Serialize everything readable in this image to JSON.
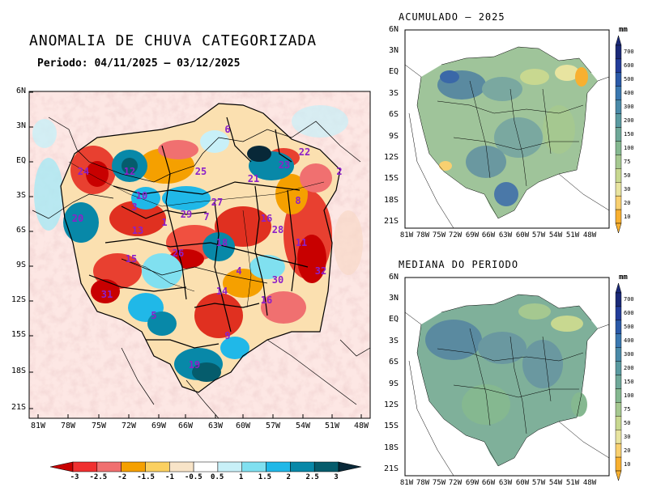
{
  "main": {
    "title": "ANOMALIA DE CHUVA CATEGORIZADA",
    "subtitle": "Periodo: 04/11/2025 – 03/12/2025",
    "lat_labels": [
      "6N",
      "3N",
      "EQ",
      "3S",
      "6S",
      "9S",
      "12S",
      "15S",
      "18S",
      "21S"
    ],
    "lon_labels": [
      "81W",
      "78W",
      "75W",
      "72W",
      "69W",
      "66W",
      "63W",
      "60W",
      "57W",
      "54W",
      "51W",
      "48W"
    ],
    "basin_ids": [
      "6",
      "22",
      "24",
      "12",
      "25",
      "21",
      "23",
      "2",
      "10",
      "3",
      "1",
      "29",
      "7",
      "27",
      "13",
      "8",
      "20",
      "18",
      "11",
      "28",
      "16",
      "26",
      "15",
      "4",
      "32",
      "30",
      "31",
      "14",
      "16",
      "5",
      "9",
      "19"
    ],
    "colorbar": {
      "labels": [
        "-3",
        "-2.5",
        "-2",
        "-1.5",
        "-1",
        "-0.5",
        "0.5",
        "1",
        "1.5",
        "2",
        "2.5",
        "3"
      ],
      "colors": [
        "#c80000",
        "#f03030",
        "#f07070",
        "#f5a000",
        "#fbd060",
        "#f8e4c8",
        "#ffffff",
        "#c8f0f8",
        "#80e0f0",
        "#20b8e8",
        "#0888a8",
        "#055c6c",
        "#082838"
      ]
    }
  },
  "accumulated": {
    "title": "ACUMULADO – 2025",
    "unit": "mm"
  },
  "median": {
    "title": "MEDIANA DO PERIODO",
    "unit": "mm"
  },
  "small_maps": {
    "lat_labels": [
      "6N",
      "3N",
      "EQ",
      "3S",
      "6S",
      "9S",
      "12S",
      "15S",
      "18S",
      "21S"
    ],
    "lon_labels": [
      "81W",
      "78W",
      "75W",
      "72W",
      "69W",
      "66W",
      "63W",
      "60W",
      "57W",
      "54W",
      "51W",
      "48W"
    ],
    "colorbar_labels": [
      "700",
      "600",
      "500",
      "400",
      "300",
      "200",
      "150",
      "100",
      "75",
      "50",
      "30",
      "20",
      "10"
    ],
    "colorbar_colors": [
      "#1b2a78",
      "#233d9a",
      "#2b5aa8",
      "#3a78b0",
      "#4a8aa8",
      "#5a9aa0",
      "#6fa898",
      "#85b890",
      "#a5c890",
      "#c8d890",
      "#e8e4a0",
      "#f8d070",
      "#f8b030"
    ]
  }
}
